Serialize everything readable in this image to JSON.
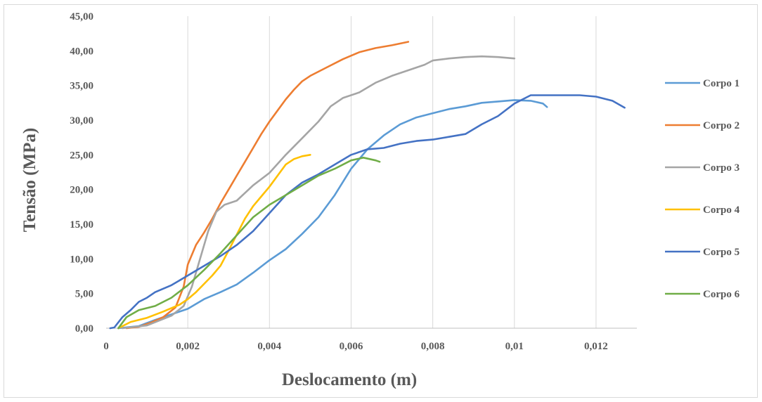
{
  "chart_data": {
    "type": "line",
    "title": "",
    "xlabel": "Deslocamento (m)",
    "ylabel": "Tensão (MPa)",
    "xlim": [
      0,
      0.013
    ],
    "ylim": [
      0,
      45
    ],
    "x_ticks": [
      {
        "value": 0,
        "label": "0"
      },
      {
        "value": 0.002,
        "label": "0,002"
      },
      {
        "value": 0.004,
        "label": "0,004"
      },
      {
        "value": 0.006,
        "label": "0,006"
      },
      {
        "value": 0.008,
        "label": "0,008"
      },
      {
        "value": 0.01,
        "label": "0,01"
      },
      {
        "value": 0.012,
        "label": "0,012"
      }
    ],
    "y_ticks": [
      {
        "value": 0,
        "label": "0,00"
      },
      {
        "value": 5,
        "label": "5,00"
      },
      {
        "value": 10,
        "label": "10,00"
      },
      {
        "value": 15,
        "label": "15,00"
      },
      {
        "value": 20,
        "label": "20,00"
      },
      {
        "value": 25,
        "label": "25,00"
      },
      {
        "value": 30,
        "label": "30,00"
      },
      {
        "value": 35,
        "label": "35,00"
      },
      {
        "value": 40,
        "label": "40,00"
      },
      {
        "value": 45,
        "label": "45,00"
      }
    ],
    "grid": "vertical major gridlines",
    "legend_position": "right",
    "series": [
      {
        "name": "Corpo 1",
        "color": "#5b9bd5",
        "points": [
          [
            0.0003,
            0
          ],
          [
            0.0008,
            0.3
          ],
          [
            0.0012,
            1.2
          ],
          [
            0.0016,
            2.0
          ],
          [
            0.002,
            2.8
          ],
          [
            0.0024,
            4.2
          ],
          [
            0.0028,
            5.2
          ],
          [
            0.0032,
            6.3
          ],
          [
            0.0036,
            8.0
          ],
          [
            0.004,
            9.8
          ],
          [
            0.0044,
            11.4
          ],
          [
            0.0048,
            13.6
          ],
          [
            0.0052,
            16.0
          ],
          [
            0.0056,
            19.2
          ],
          [
            0.006,
            23.0
          ],
          [
            0.0064,
            25.8
          ],
          [
            0.0068,
            27.8
          ],
          [
            0.0072,
            29.4
          ],
          [
            0.0076,
            30.4
          ],
          [
            0.008,
            31.0
          ],
          [
            0.0084,
            31.6
          ],
          [
            0.0088,
            32.0
          ],
          [
            0.0092,
            32.5
          ],
          [
            0.0096,
            32.7
          ],
          [
            0.01,
            32.9
          ],
          [
            0.0104,
            32.8
          ],
          [
            0.0107,
            32.4
          ],
          [
            0.0108,
            31.9
          ]
        ]
      },
      {
        "name": "Corpo 2",
        "color": "#ed7d31",
        "points": [
          [
            0.0005,
            0
          ],
          [
            0.0008,
            0.2
          ],
          [
            0.0011,
            0.8
          ],
          [
            0.0014,
            1.6
          ],
          [
            0.0017,
            3.0
          ],
          [
            0.0019,
            6.0
          ],
          [
            0.002,
            9.2
          ],
          [
            0.0022,
            12.0
          ],
          [
            0.0024,
            13.8
          ],
          [
            0.0026,
            15.8
          ],
          [
            0.0028,
            18.0
          ],
          [
            0.003,
            20.0
          ],
          [
            0.0032,
            22.0
          ],
          [
            0.0034,
            24.0
          ],
          [
            0.0036,
            26.0
          ],
          [
            0.0038,
            28.0
          ],
          [
            0.004,
            29.8
          ],
          [
            0.0042,
            31.4
          ],
          [
            0.0044,
            33.0
          ],
          [
            0.0046,
            34.4
          ],
          [
            0.0048,
            35.6
          ],
          [
            0.005,
            36.4
          ],
          [
            0.0054,
            37.6
          ],
          [
            0.0058,
            38.8
          ],
          [
            0.0062,
            39.8
          ],
          [
            0.0066,
            40.4
          ],
          [
            0.007,
            40.8
          ],
          [
            0.0074,
            41.3
          ]
        ]
      },
      {
        "name": "Corpo 3",
        "color": "#a5a5a5",
        "points": [
          [
            0.0004,
            0
          ],
          [
            0.001,
            0.4
          ],
          [
            0.0016,
            1.8
          ],
          [
            0.0019,
            3.2
          ],
          [
            0.0021,
            6.0
          ],
          [
            0.0023,
            10.0
          ],
          [
            0.0025,
            14.0
          ],
          [
            0.0027,
            16.8
          ],
          [
            0.0029,
            17.8
          ],
          [
            0.0032,
            18.4
          ],
          [
            0.0036,
            20.6
          ],
          [
            0.004,
            22.4
          ],
          [
            0.0044,
            25.0
          ],
          [
            0.0048,
            27.4
          ],
          [
            0.0052,
            29.8
          ],
          [
            0.0055,
            32.0
          ],
          [
            0.0058,
            33.2
          ],
          [
            0.0062,
            34.0
          ],
          [
            0.0066,
            35.4
          ],
          [
            0.007,
            36.4
          ],
          [
            0.0074,
            37.2
          ],
          [
            0.0078,
            38.0
          ],
          [
            0.008,
            38.6
          ],
          [
            0.0084,
            38.9
          ],
          [
            0.0088,
            39.1
          ],
          [
            0.0092,
            39.2
          ],
          [
            0.0096,
            39.1
          ],
          [
            0.01,
            38.9
          ]
        ]
      },
      {
        "name": "Corpo 4",
        "color": "#ffc000",
        "points": [
          [
            0.0003,
            0
          ],
          [
            0.0006,
            0.9
          ],
          [
            0.001,
            1.5
          ],
          [
            0.0014,
            2.4
          ],
          [
            0.0018,
            3.4
          ],
          [
            0.002,
            4.2
          ],
          [
            0.0022,
            5.2
          ],
          [
            0.0024,
            6.4
          ],
          [
            0.0026,
            7.6
          ],
          [
            0.0028,
            9.0
          ],
          [
            0.003,
            11.2
          ],
          [
            0.0032,
            13.5
          ],
          [
            0.0034,
            15.8
          ],
          [
            0.0036,
            17.6
          ],
          [
            0.0038,
            19.0
          ],
          [
            0.004,
            20.4
          ],
          [
            0.0042,
            22.0
          ],
          [
            0.0044,
            23.6
          ],
          [
            0.0046,
            24.4
          ],
          [
            0.0048,
            24.8
          ],
          [
            0.005,
            25.0
          ]
        ]
      },
      {
        "name": "Corpo 5",
        "color": "#4472c4",
        "points": [
          [
            0.0001,
            0
          ],
          [
            0.0002,
            0.1
          ],
          [
            0.0004,
            1.6
          ],
          [
            0.0006,
            2.6
          ],
          [
            0.0008,
            3.8
          ],
          [
            0.001,
            4.4
          ],
          [
            0.0012,
            5.2
          ],
          [
            0.0016,
            6.2
          ],
          [
            0.002,
            7.6
          ],
          [
            0.0024,
            9.0
          ],
          [
            0.0028,
            10.4
          ],
          [
            0.0032,
            12.0
          ],
          [
            0.0036,
            14.0
          ],
          [
            0.004,
            16.6
          ],
          [
            0.0044,
            19.2
          ],
          [
            0.0048,
            21.0
          ],
          [
            0.0052,
            22.2
          ],
          [
            0.0056,
            23.6
          ],
          [
            0.006,
            25.0
          ],
          [
            0.0064,
            25.8
          ],
          [
            0.0068,
            26.0
          ],
          [
            0.0072,
            26.6
          ],
          [
            0.0076,
            27.0
          ],
          [
            0.008,
            27.2
          ],
          [
            0.0084,
            27.6
          ],
          [
            0.0088,
            28.0
          ],
          [
            0.0092,
            29.4
          ],
          [
            0.0096,
            30.6
          ],
          [
            0.01,
            32.4
          ],
          [
            0.0104,
            33.6
          ],
          [
            0.0108,
            33.6
          ],
          [
            0.0112,
            33.6
          ],
          [
            0.0116,
            33.6
          ],
          [
            0.012,
            33.4
          ],
          [
            0.0124,
            32.8
          ],
          [
            0.0127,
            31.8
          ]
        ]
      },
      {
        "name": "Corpo 6",
        "color": "#70ad47",
        "points": [
          [
            0.0003,
            0
          ],
          [
            0.0005,
            1.6
          ],
          [
            0.0008,
            2.6
          ],
          [
            0.0012,
            3.2
          ],
          [
            0.0016,
            4.4
          ],
          [
            0.002,
            6.2
          ],
          [
            0.0024,
            8.4
          ],
          [
            0.0028,
            10.8
          ],
          [
            0.0032,
            13.4
          ],
          [
            0.0036,
            16.0
          ],
          [
            0.004,
            17.8
          ],
          [
            0.0044,
            19.2
          ],
          [
            0.0048,
            20.6
          ],
          [
            0.0052,
            22.0
          ],
          [
            0.0056,
            23.0
          ],
          [
            0.006,
            24.2
          ],
          [
            0.0063,
            24.6
          ],
          [
            0.0066,
            24.2
          ],
          [
            0.0067,
            24.0
          ]
        ]
      }
    ]
  }
}
